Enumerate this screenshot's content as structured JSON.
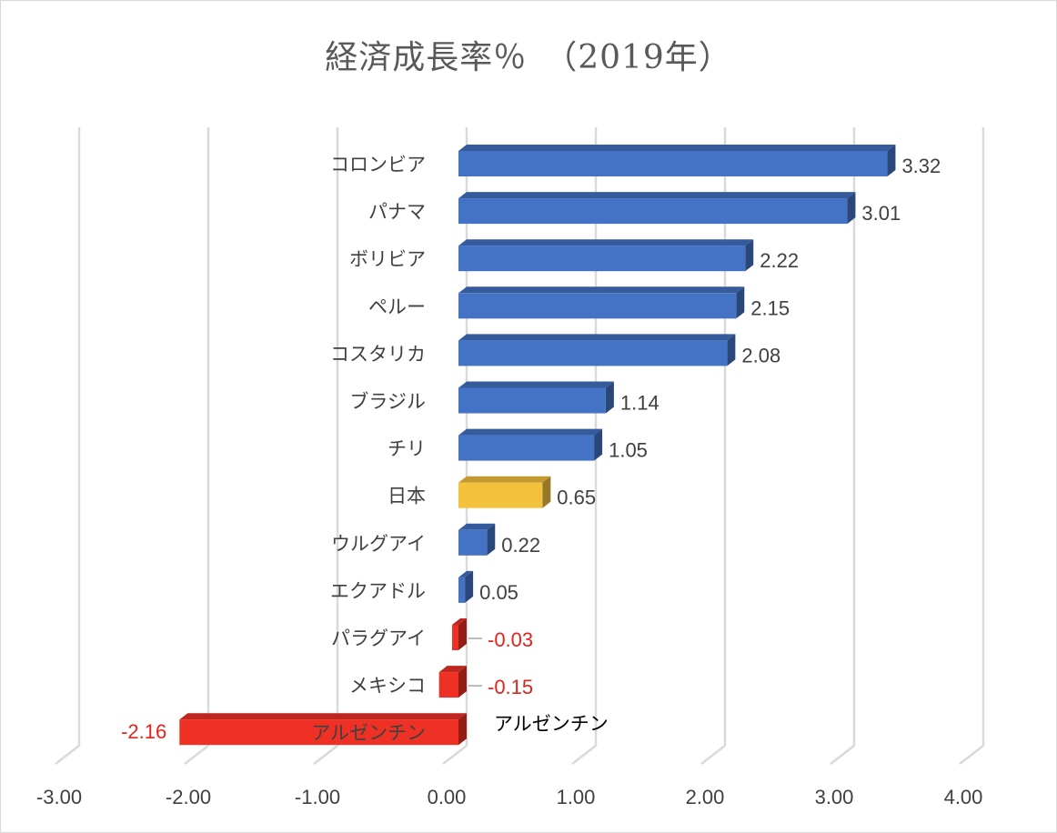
{
  "chart_data": {
    "type": "bar",
    "orientation": "horizontal",
    "title": "経済成長率％　（2019年）",
    "categories": [
      "コロンビア",
      "パナマ",
      "ボリビア",
      "ペルー",
      "コスタリカ",
      "ブラジル",
      "チリ",
      "日本",
      "ウルグアイ",
      "エクアドル",
      "パラグアイ",
      "メキシコ",
      "アルゼンチン"
    ],
    "values": [
      3.32,
      3.01,
      2.22,
      2.15,
      2.08,
      1.14,
      1.05,
      0.65,
      0.22,
      0.05,
      -0.03,
      -0.15,
      -2.16
    ],
    "value_labels": [
      "3.32",
      "3.01",
      "2.22",
      "2.15",
      "2.08",
      "1.14",
      "1.05",
      "0.65",
      "0.22",
      "0.05",
      "-0.03",
      "-0.15",
      "-2.16"
    ],
    "xlim": [
      -3.0,
      4.0
    ],
    "ticks": [
      "-3.00",
      "-2.00",
      "-1.00",
      "0.00",
      "1.00",
      "2.00",
      "3.00",
      "4.00"
    ],
    "highlight_category": "日本",
    "annotation": "アルゼンチン",
    "grid": true,
    "legend": "none",
    "colors": {
      "positive": "#4472c4",
      "highlight": "#f4c13d",
      "negative": "#ee3124",
      "negative_label": "#e0241b",
      "grid": "#d9d9d9"
    }
  }
}
